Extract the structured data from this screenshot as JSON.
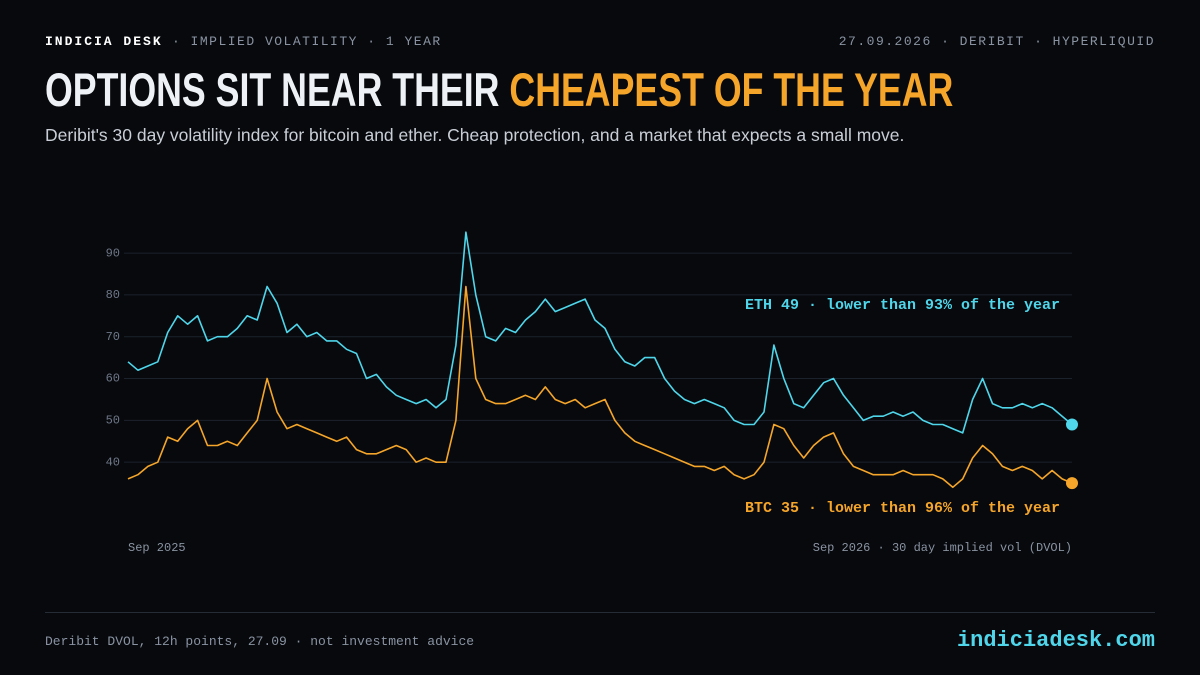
{
  "header": {
    "brand": "INDICIA DESK",
    "context": "· IMPLIED VOLATILITY · 1 YEAR",
    "meta": "27.09.2026 · DERIBIT · HYPERLIQUID"
  },
  "chart_data": {
    "type": "line",
    "title": "OPTIONS SIT NEAR THEIR ",
    "title_highlight": "CHEAPEST OF THE YEAR",
    "subtitle": "Deribit's 30 day volatility index for bitcoin and ether. Cheap protection, and a market that expects a small move.",
    "x_start_label": "Sep 2025",
    "x_end_label": "Sep 2026 · 30 day implied vol (DVOL)",
    "ylim": [
      30,
      96
    ],
    "yticks": [
      40,
      50,
      60,
      70,
      80,
      90
    ],
    "grid": true,
    "series": [
      {
        "color": "#4fd6ea",
        "annotation": "ETH 49 · lower than 93% of the year",
        "values": [
          64,
          62,
          63,
          64,
          71,
          75,
          73,
          75,
          69,
          70,
          70,
          72,
          75,
          74,
          82,
          78,
          71,
          73,
          70,
          71,
          69,
          69,
          67,
          66,
          60,
          61,
          58,
          56,
          55,
          54,
          55,
          53,
          55,
          68,
          95,
          80,
          70,
          69,
          72,
          71,
          74,
          76,
          79,
          76,
          77,
          78,
          79,
          74,
          72,
          67,
          64,
          63,
          65,
          65,
          60,
          57,
          55,
          54,
          55,
          54,
          53,
          50,
          49,
          49,
          52,
          68,
          60,
          54,
          53,
          56,
          59,
          60,
          56,
          53,
          50,
          51,
          51,
          52,
          51,
          52,
          50,
          49,
          49,
          48,
          47,
          55,
          60,
          54,
          53,
          53,
          54,
          53,
          54,
          53,
          51,
          49
        ]
      },
      {
        "color": "#f5a52a",
        "annotation": "BTC 35 · lower than 96% of the year",
        "values": [
          36,
          37,
          39,
          40,
          46,
          45,
          48,
          50,
          44,
          44,
          45,
          44,
          47,
          50,
          60,
          52,
          48,
          49,
          48,
          47,
          46,
          45,
          46,
          43,
          42,
          42,
          43,
          44,
          43,
          40,
          41,
          40,
          40,
          50,
          82,
          60,
          55,
          54,
          54,
          55,
          56,
          55,
          58,
          55,
          54,
          55,
          53,
          54,
          55,
          50,
          47,
          45,
          44,
          43,
          42,
          41,
          40,
          39,
          39,
          38,
          39,
          37,
          36,
          37,
          40,
          49,
          48,
          44,
          41,
          44,
          46,
          47,
          42,
          39,
          38,
          37,
          37,
          37,
          38,
          37,
          37,
          37,
          36,
          34,
          36,
          41,
          44,
          42,
          39,
          38,
          39,
          38,
          36,
          38,
          36,
          35
        ]
      }
    ]
  },
  "footer": {
    "note": "Deribit DVOL, 12h points, 27.09 · not investment advice",
    "site": "indiciadesk.com"
  }
}
